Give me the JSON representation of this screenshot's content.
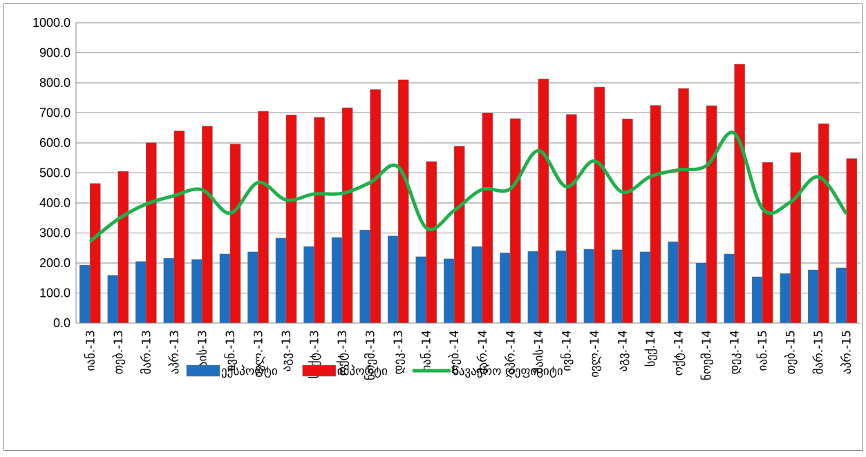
{
  "chart_data": {
    "type": "bar-line",
    "categories": [
      "იან.-13",
      "თებ.-13",
      "მარ.-13",
      "აპრ.-13",
      "მაის-13",
      "ივნ.-13",
      "ივლ.-13",
      "აგვ.-13",
      "სექტ.-13",
      "ოქტ.-13",
      "ნოემ.-13",
      "დეკ.-13",
      "იან.-14",
      "თებ.-14",
      "მარ.-14",
      "აპრ.-14",
      "მაის-14",
      "ივნ.-14",
      "ივლ.-14",
      "აგვ.-14",
      "სექ.14",
      "ოქტ.-14",
      "ნოემ.-14",
      "დეკ.-14",
      "იან.-15",
      "თებ.-15",
      "მარ.-15",
      "აპრ.-15"
    ],
    "series": [
      {
        "name": "ექსპორტი",
        "type": "bar",
        "color": "#1f6fc0",
        "values": [
          193,
          159,
          205,
          216,
          212,
          230,
          237,
          283,
          255,
          285,
          310,
          290,
          221,
          214,
          255,
          234,
          239,
          241,
          246,
          244,
          237,
          271,
          200,
          230,
          154,
          165,
          177,
          184
        ]
      },
      {
        "name": "იმპორტი",
        "type": "bar",
        "color": "#e81010",
        "values": [
          465,
          505,
          601,
          640,
          656,
          596,
          705,
          693,
          685,
          717,
          778,
          810,
          538,
          589,
          700,
          681,
          813,
          695,
          786,
          680,
          725,
          781,
          724,
          862,
          535,
          568,
          664,
          548
        ]
      },
      {
        "name": "სავაჭრო დეფიციტი",
        "type": "line",
        "color": "#1fb04b",
        "values": [
          272,
          346,
          396,
          424,
          444,
          366,
          468,
          410,
          430,
          432,
          468,
          520,
          317,
          375,
          445,
          447,
          574,
          454,
          540,
          436,
          488,
          510,
          524,
          632,
          381,
          403,
          487,
          364
        ]
      }
    ],
    "ylim": [
      0,
      1000
    ],
    "yticks": [
      {
        "value": 0,
        "label": "0.0"
      },
      {
        "value": 100,
        "label": "100.0"
      },
      {
        "value": 200,
        "label": "200.0"
      },
      {
        "value": 300,
        "label": "300.0"
      },
      {
        "value": 400,
        "label": "400.0"
      },
      {
        "value": 500,
        "label": "500.0"
      },
      {
        "value": 600,
        "label": "600.0"
      },
      {
        "value": 700,
        "label": "700.0"
      },
      {
        "value": 800,
        "label": "800.0"
      },
      {
        "value": 900,
        "label": "900.0"
      },
      {
        "value": 1000,
        "label": "1000.0"
      }
    ],
    "grid": true,
    "legend": "bottom"
  }
}
